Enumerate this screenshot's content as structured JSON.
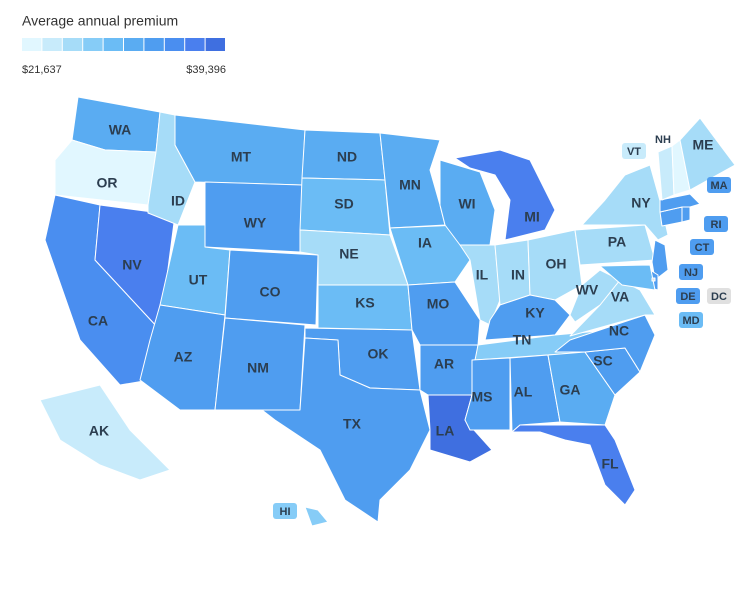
{
  "legend": {
    "title": "Average annual premium",
    "min": {
      "value": 21637,
      "label": "$21,637"
    },
    "max": {
      "value": 39396,
      "label": "$39,396"
    },
    "colors": [
      "#e1f7ff",
      "#c8ebfb",
      "#a6dcf8",
      "#86ccf7",
      "#6bbcf5",
      "#5aacf2",
      "#4f9df0",
      "#4a8ef0",
      "#4a7fee",
      "#3f6fe0"
    ]
  },
  "map": {
    "no_data_color": "#e0e0e0",
    "states": [
      {
        "code": "WA",
        "value": 31405
      },
      {
        "code": "OR",
        "value": 22525
      },
      {
        "code": "CA",
        "value": 34956
      },
      {
        "code": "NV",
        "value": 36732
      },
      {
        "code": "ID",
        "value": 26077
      },
      {
        "code": "MT",
        "value": 31405
      },
      {
        "code": "WY",
        "value": 33181
      },
      {
        "code": "UT",
        "value": 29629
      },
      {
        "code": "CO",
        "value": 33181
      },
      {
        "code": "AZ",
        "value": 33181
      },
      {
        "code": "NM",
        "value": 33181
      },
      {
        "code": "ND",
        "value": 31405
      },
      {
        "code": "SD",
        "value": 29629
      },
      {
        "code": "NE",
        "value": 26077
      },
      {
        "code": "KS",
        "value": 29629
      },
      {
        "code": "OK",
        "value": 33181
      },
      {
        "code": "TX",
        "value": 33181
      },
      {
        "code": "MN",
        "value": 31405
      },
      {
        "code": "IA",
        "value": 29629
      },
      {
        "code": "MO",
        "value": 33181
      },
      {
        "code": "AR",
        "value": 33181
      },
      {
        "code": "LA",
        "value": 38508
      },
      {
        "code": "WI",
        "value": 31405
      },
      {
        "code": "IL",
        "value": 26077
      },
      {
        "code": "MI",
        "value": 36732
      },
      {
        "code": "IN",
        "value": 26077
      },
      {
        "code": "OH",
        "value": 26077
      },
      {
        "code": "KY",
        "value": 33181
      },
      {
        "code": "TN",
        "value": 27853
      },
      {
        "code": "MS",
        "value": 33181
      },
      {
        "code": "AL",
        "value": 33181
      },
      {
        "code": "GA",
        "value": 31405
      },
      {
        "code": "FL",
        "value": 36732
      },
      {
        "code": "SC",
        "value": 33181
      },
      {
        "code": "NC",
        "value": 33181
      },
      {
        "code": "VA",
        "value": 26077
      },
      {
        "code": "WV",
        "value": 26077
      },
      {
        "code": "PA",
        "value": 26077
      },
      {
        "code": "NY",
        "value": 26077
      },
      {
        "code": "NJ",
        "value": 33181
      },
      {
        "code": "DE",
        "value": 33181
      },
      {
        "code": "MD",
        "value": 29629
      },
      {
        "code": "CT",
        "value": 33181
      },
      {
        "code": "RI",
        "value": 33181
      },
      {
        "code": "MA",
        "value": 33181
      },
      {
        "code": "VT",
        "value": 24301
      },
      {
        "code": "NH",
        "value": 22525
      },
      {
        "code": "ME",
        "value": 26077
      },
      {
        "code": "AK",
        "value": 24301
      },
      {
        "code": "HI",
        "value": 27853
      },
      {
        "code": "DC",
        "value": null
      }
    ]
  }
}
